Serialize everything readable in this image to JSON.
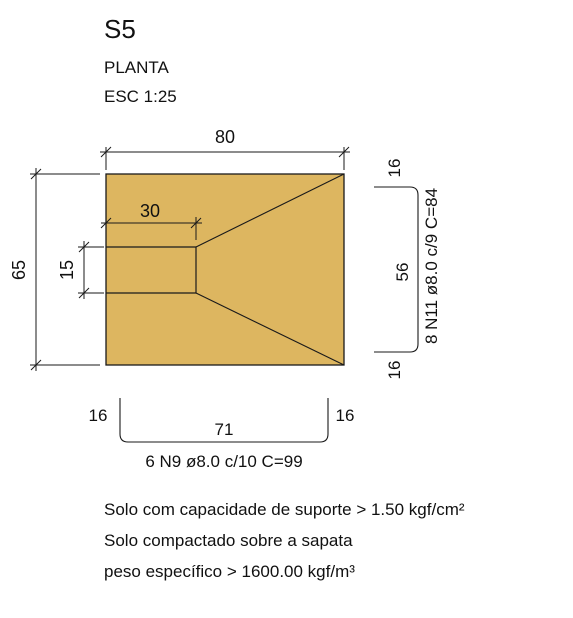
{
  "header": {
    "title": "S5",
    "view": "PLANTA",
    "scale": "ESC 1:25"
  },
  "dimensions": {
    "top_width": "80",
    "left_height": "65",
    "inner_height": "15",
    "inner_width": "30",
    "right_top_offset": "16",
    "right_span": "56",
    "right_bottom_offset": "16",
    "bottom_left_offset": "16",
    "bottom_span": "71",
    "bottom_right_offset": "16"
  },
  "rebar": {
    "vertical_label": "8 N11 ø8.0 c/9 C=84",
    "horizontal_label": "6 N9 ø8.0 c/10 C=99"
  },
  "notes": [
    "Solo com capacidade de suporte > 1.50 kgf/cm²",
    "Solo compactado sobre a sapata",
    "peso específico > 1600.00 kgf/m³"
  ],
  "colors": {
    "footing_fill": "#DDB660",
    "line": "#1A1A1A"
  }
}
